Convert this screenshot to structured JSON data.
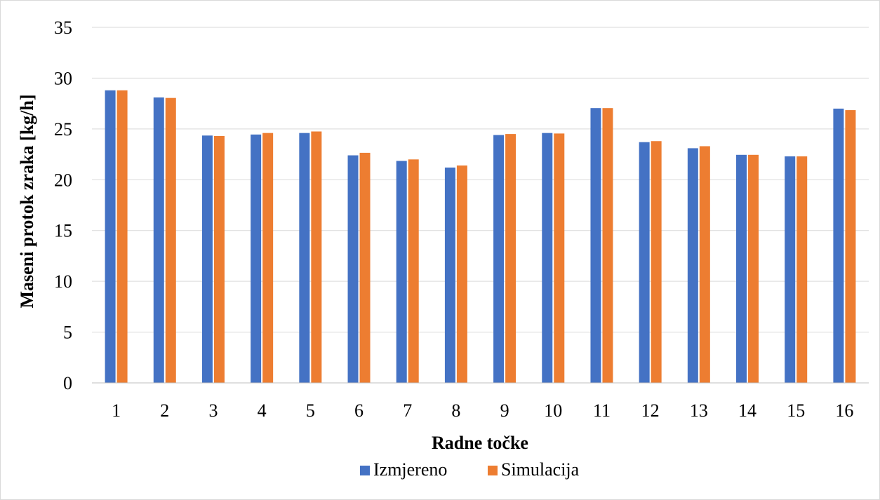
{
  "chart_data": {
    "type": "bar",
    "title": "",
    "xlabel": "Radne točke",
    "ylabel": "Maseni protok zraka [kg/h]",
    "ylim": [
      0,
      35
    ],
    "yticks": [
      0,
      5,
      10,
      15,
      20,
      25,
      30,
      35
    ],
    "grid": true,
    "legend_position": "bottom",
    "categories": [
      "1",
      "2",
      "3",
      "4",
      "5",
      "6",
      "7",
      "8",
      "9",
      "10",
      "11",
      "12",
      "13",
      "14",
      "15",
      "16"
    ],
    "series": [
      {
        "name": "Izmjereno",
        "color": "#4472c4",
        "values": [
          28.8,
          28.1,
          24.35,
          24.45,
          24.6,
          22.4,
          21.85,
          21.2,
          24.4,
          24.6,
          27.05,
          23.7,
          23.1,
          22.45,
          22.3,
          27.0
        ]
      },
      {
        "name": "Simulacija",
        "color": "#ed7d31",
        "values": [
          28.8,
          28.05,
          24.3,
          24.6,
          24.75,
          22.65,
          22.0,
          21.4,
          24.5,
          24.55,
          27.05,
          23.8,
          23.3,
          22.45,
          22.3,
          26.85
        ]
      }
    ]
  }
}
